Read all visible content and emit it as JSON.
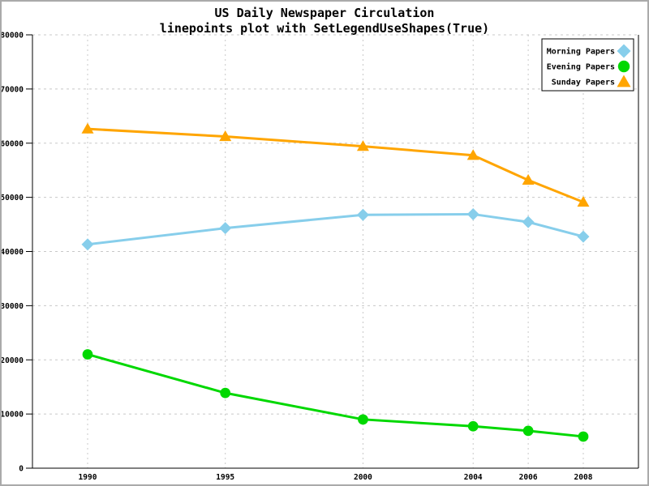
{
  "image": {
    "background": "#FFFFFF",
    "border_color": "#AAAAAA"
  },
  "chart_data": {
    "type": "line",
    "variant": "linepoints",
    "title": "US Daily Newspaper Circulation",
    "subtitle": "linepoints plot with SetLegendUseShapes(True)",
    "x": [
      1990,
      1995,
      2000,
      2004,
      2006,
      2008
    ],
    "x_tick_labels": [
      "1990",
      "1995",
      "2000",
      "2004",
      "2006",
      "2008"
    ],
    "ylim": [
      0,
      80000
    ],
    "y_tick_step": 10000,
    "y_tick_labels": [
      "0",
      "10000",
      "20000",
      "30000",
      "40000",
      "50000",
      "60000",
      "70000",
      "80000"
    ],
    "grid": true,
    "gridline_style": "dashed",
    "legend": {
      "position": "top-right",
      "use_shapes": true,
      "entries": [
        "Morning Papers",
        "Evening Papers",
        "Sunday Papers"
      ]
    },
    "series": [
      {
        "name": "Morning Papers",
        "marker": "diamond",
        "color": "#87CEEB",
        "values": [
          41311,
          44310,
          46772,
          46887,
          45441,
          42757
        ]
      },
      {
        "name": "Evening Papers",
        "marker": "circle",
        "color": "#00D800",
        "values": [
          21017,
          13883,
          9000,
          7738,
          6900,
          5840
        ]
      },
      {
        "name": "Sunday Papers",
        "marker": "triangle",
        "color": "#FFA500",
        "values": [
          62634,
          61229,
          59421,
          57754,
          53179,
          49115
        ]
      }
    ],
    "colors": {
      "axis": "#000000",
      "grid": "#C8C8C8",
      "legend_border": "#000000",
      "legend_background": "#FFFFFF",
      "text": "#000000"
    }
  }
}
